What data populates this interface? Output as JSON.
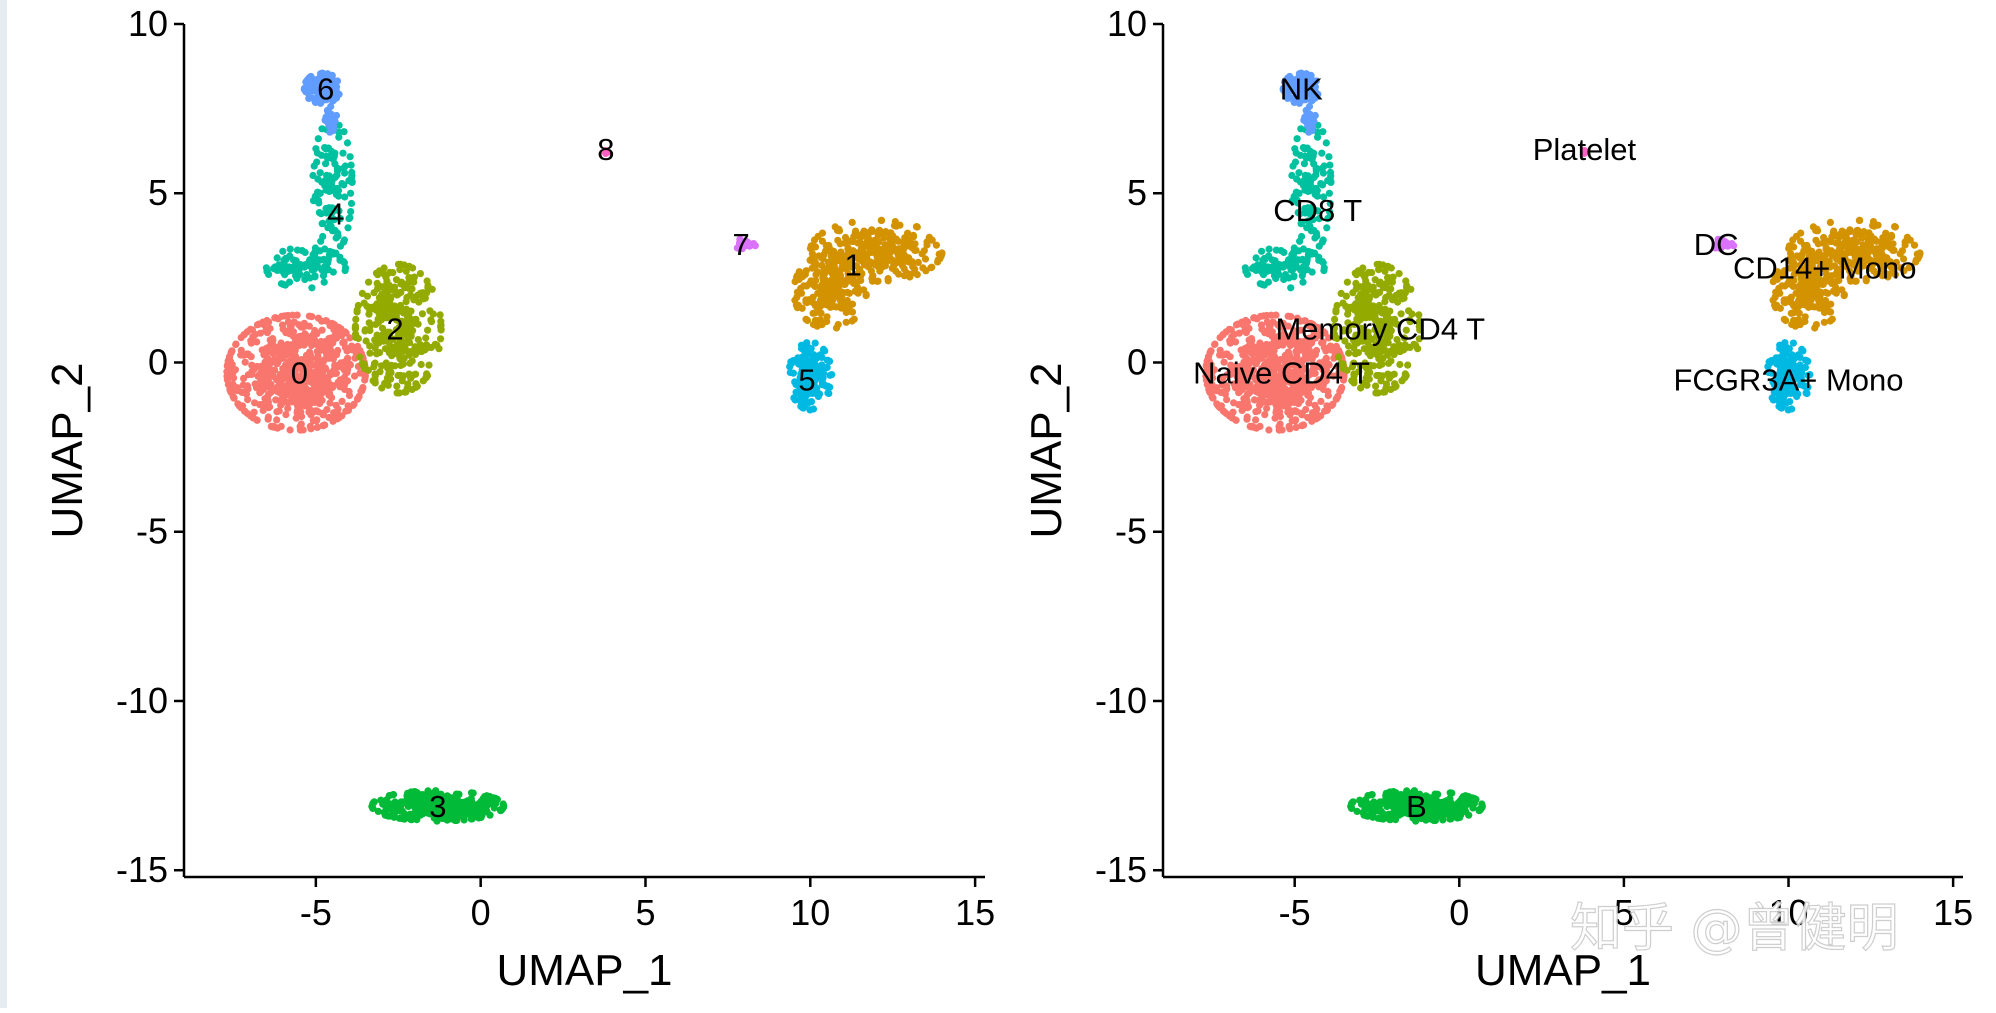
{
  "watermark": "知乎 @曾健明",
  "chart_data": [
    {
      "type": "scatter",
      "title": "",
      "xlabel": "UMAP_1",
      "ylabel": "UMAP_2",
      "xlim": [
        -9,
        15.3
      ],
      "ylim": [
        -15.2,
        10
      ],
      "xticks": [
        -5,
        0,
        5,
        10,
        15
      ],
      "yticks": [
        10,
        5,
        0,
        -5,
        -10,
        -15
      ],
      "xtick_labels": [
        "-5",
        "0",
        "5",
        "10",
        "15"
      ],
      "ytick_labels": [
        "10",
        "5",
        "0",
        "-5",
        "-10",
        "-15"
      ],
      "legend": "none",
      "series": [
        {
          "name": "0",
          "color": "#F8766D",
          "label": "0",
          "label_pos": [
            -5.5,
            -0.3
          ]
        },
        {
          "name": "1",
          "color": "#D39200",
          "label": "1",
          "label_pos": [
            11.3,
            2.9
          ]
        },
        {
          "name": "2",
          "color": "#93AA00",
          "label": "2",
          "label_pos": [
            -2.6,
            1.0
          ]
        },
        {
          "name": "3",
          "color": "#00BA38",
          "label": "3",
          "label_pos": [
            -1.3,
            -13.1
          ]
        },
        {
          "name": "4",
          "color": "#00C19F",
          "label": "4",
          "label_pos": [
            -4.4,
            4.4
          ]
        },
        {
          "name": "5",
          "color": "#00B9E3",
          "label": "5",
          "label_pos": [
            9.9,
            -0.5
          ]
        },
        {
          "name": "6",
          "color": "#619CFF",
          "label": "6",
          "label_pos": [
            -4.7,
            8.1
          ]
        },
        {
          "name": "7",
          "color": "#DB72FB",
          "label": "7",
          "label_pos": [
            7.9,
            3.5
          ]
        },
        {
          "name": "8",
          "color": "#FF61C3",
          "label": "8",
          "label_pos": [
            3.8,
            6.3
          ]
        }
      ]
    },
    {
      "type": "scatter",
      "title": "",
      "xlabel": "UMAP_1",
      "ylabel": "UMAP_2",
      "xlim": [
        -9,
        15.3
      ],
      "ylim": [
        -15.2,
        10
      ],
      "xticks": [
        -5,
        0,
        5,
        10,
        15
      ],
      "yticks": [
        10,
        5,
        0,
        -5,
        -10,
        -15
      ],
      "xtick_labels": [
        "-5",
        "0",
        "5",
        "10",
        "15"
      ],
      "ytick_labels": [
        "10",
        "5",
        "0",
        "-5",
        "-10",
        "-15"
      ],
      "legend": "none",
      "series": [
        {
          "name": "Naive CD4 T",
          "color": "#F8766D",
          "label": "Naive CD4 T",
          "label_pos": [
            -5.4,
            -0.3
          ]
        },
        {
          "name": "CD14+ Mono",
          "color": "#D39200",
          "label": "CD14+ Mono",
          "label_pos": [
            11.1,
            2.8
          ]
        },
        {
          "name": "Memory CD4 T",
          "color": "#93AA00",
          "label": "Memory CD4 T",
          "label_pos": [
            -2.4,
            1.0
          ]
        },
        {
          "name": "B",
          "color": "#00BA38",
          "label": "B",
          "label_pos": [
            -1.3,
            -13.1
          ]
        },
        {
          "name": "CD8 T",
          "color": "#00C19F",
          "label": "CD8 T",
          "label_pos": [
            -4.3,
            4.5
          ]
        },
        {
          "name": "FCGR3A+ Mono",
          "color": "#00B9E3",
          "label": "FCGR3A+ Mono",
          "label_pos": [
            10.0,
            -0.5
          ]
        },
        {
          "name": "NK",
          "color": "#619CFF",
          "label": "NK",
          "label_pos": [
            -4.8,
            8.1
          ]
        },
        {
          "name": "DC",
          "color": "#DB72FB",
          "label": "DC",
          "label_pos": [
            7.8,
            3.5
          ]
        },
        {
          "name": "Platelet",
          "color": "#FF61C3",
          "label": "Platelet",
          "label_pos": [
            3.8,
            6.3
          ]
        }
      ]
    }
  ]
}
